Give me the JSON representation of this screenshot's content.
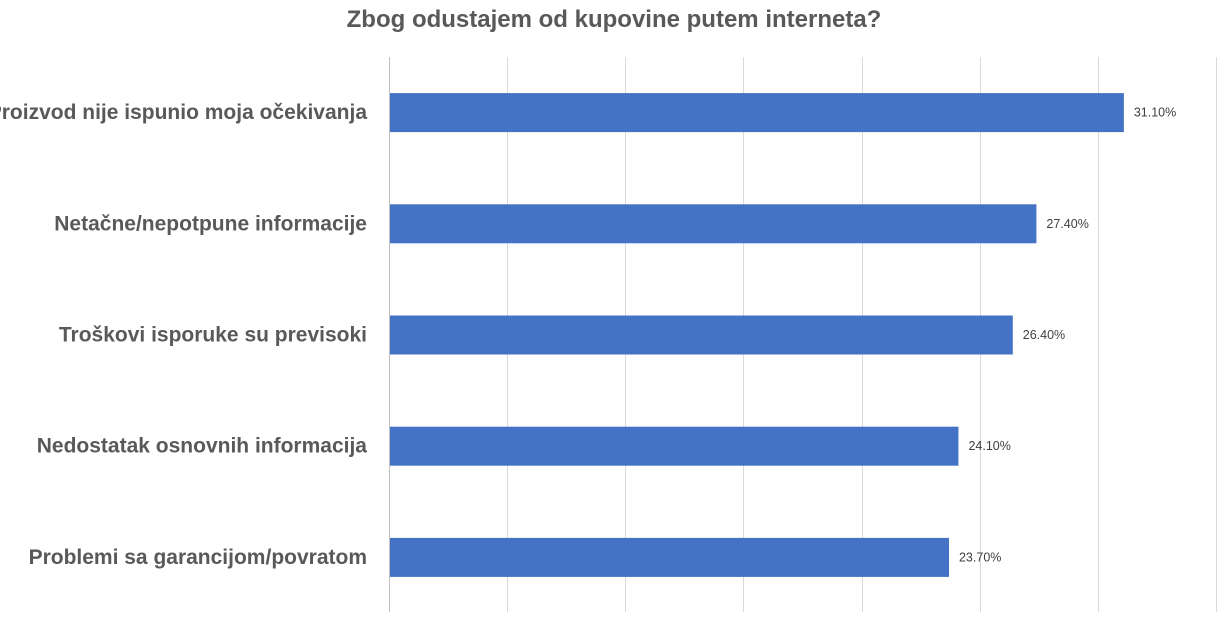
{
  "chart_data": {
    "type": "bar",
    "orientation": "horizontal",
    "title": "Zbog odustajem od kupovine putem interneta?",
    "categories": [
      "Proizvod nije ispunio moja očekivanja",
      "Netačne/nepotpune informacije",
      "Troškovi isporuke su previsoki",
      "Nedostatak osnovnih informacija",
      "Problemi sa garancijom/povratom"
    ],
    "values": [
      31.1,
      27.4,
      26.4,
      24.1,
      23.7
    ],
    "data_labels": [
      "31.10%",
      "27.40%",
      "26.40%",
      "24.10%",
      "23.70%"
    ],
    "xlim": [
      0,
      35
    ],
    "x_grid_step": 5,
    "grid": true,
    "legend": "none",
    "bar_color": "#4472C4"
  }
}
